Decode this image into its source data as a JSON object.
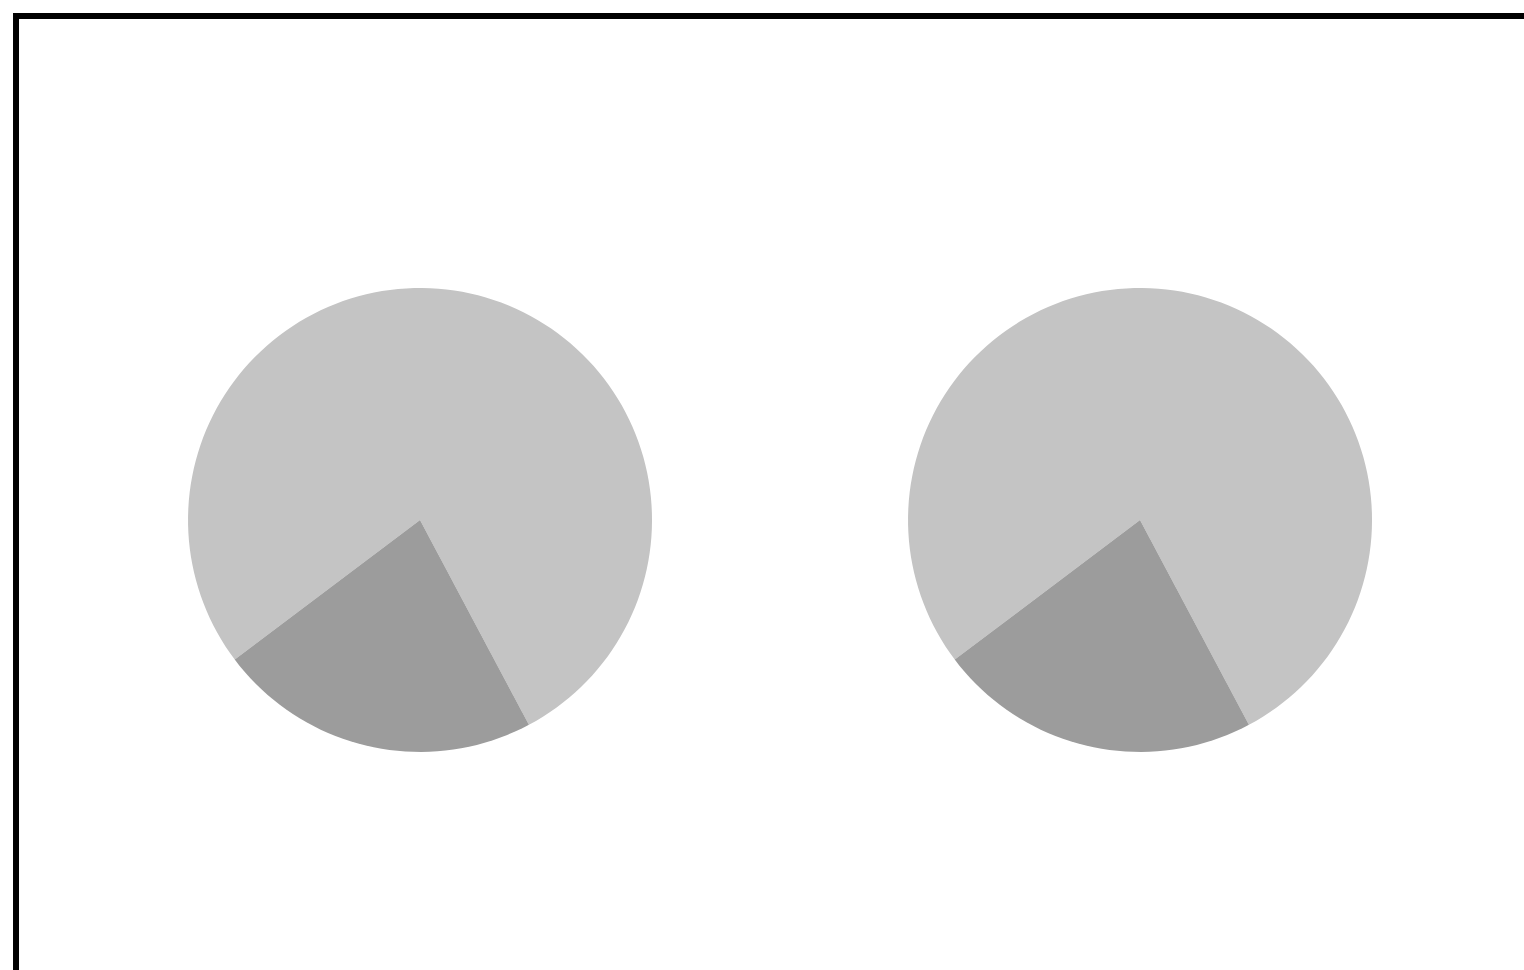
{
  "chart_data": [
    {
      "type": "pie",
      "categories": [
        null,
        null
      ],
      "values": [
        77.5,
        22.5
      ],
      "colors": [
        "#c4c4c4",
        "#9c9c9c"
      ]
    },
    {
      "type": "pie",
      "categories": [
        null,
        null
      ],
      "values": [
        77.5,
        22.5
      ],
      "colors": [
        "#c4c4c4",
        "#9c9c9c"
      ]
    }
  ]
}
